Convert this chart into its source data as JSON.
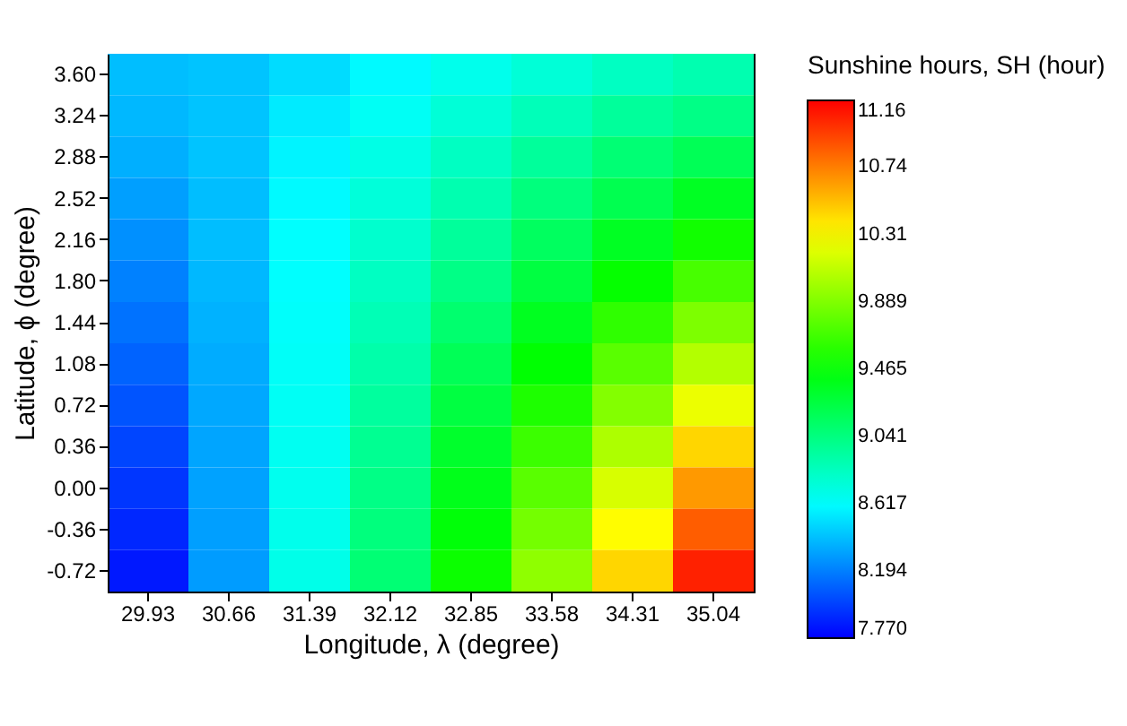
{
  "chart_data": {
    "type": "heatmap",
    "xlabel": "Longitude, λ (degree)",
    "ylabel": "Latitude, ϕ (degree)",
    "legend_title": "Sunshine hours, SH (hour)",
    "categories": [
      "29.93",
      "30.66",
      "31.39",
      "32.12",
      "32.85",
      "33.58",
      "34.31",
      "35.04"
    ],
    "y_categories": [
      "3.60",
      "3.24",
      "2.88",
      "2.52",
      "2.16",
      "1.80",
      "1.44",
      "1.08",
      "0.72",
      "0.36",
      "0.00",
      "-0.36",
      "-0.72"
    ],
    "cells": [
      [
        8.4,
        8.42,
        8.5,
        8.6,
        8.68,
        8.75,
        8.82,
        8.88
      ],
      [
        8.38,
        8.42,
        8.55,
        8.65,
        8.75,
        8.85,
        8.95,
        9.02
      ],
      [
        8.35,
        8.42,
        8.58,
        8.7,
        8.82,
        8.95,
        9.08,
        9.18
      ],
      [
        8.3,
        8.4,
        8.6,
        8.74,
        8.88,
        9.05,
        9.2,
        9.35
      ],
      [
        8.25,
        8.4,
        8.62,
        8.78,
        8.95,
        9.15,
        9.35,
        9.52
      ],
      [
        8.2,
        8.38,
        8.62,
        8.82,
        9.02,
        9.25,
        9.48,
        9.7
      ],
      [
        8.15,
        8.36,
        8.63,
        8.86,
        9.1,
        9.36,
        9.62,
        9.88
      ],
      [
        8.1,
        8.34,
        8.64,
        8.9,
        9.18,
        9.46,
        9.76,
        10.06
      ],
      [
        8.05,
        8.33,
        8.65,
        8.94,
        9.25,
        9.56,
        9.9,
        10.25
      ],
      [
        8.0,
        8.32,
        8.66,
        8.98,
        9.32,
        9.66,
        10.04,
        10.45
      ],
      [
        7.95,
        8.31,
        8.67,
        9.02,
        9.38,
        9.76,
        10.18,
        10.65
      ],
      [
        7.9,
        8.3,
        8.68,
        9.05,
        9.44,
        9.85,
        10.32,
        10.85
      ],
      [
        7.85,
        8.29,
        8.69,
        9.08,
        9.5,
        9.94,
        10.45,
        11.05
      ]
    ],
    "clim": [
      7.77,
      11.16
    ],
    "cticks": [
      {
        "value": 7.77,
        "label": "7.770"
      },
      8.194,
      {
        "value": 8.617,
        "label": "8.617"
      },
      9.041,
      9.465,
      9.889,
      10.31,
      10.74,
      11.16
    ]
  }
}
